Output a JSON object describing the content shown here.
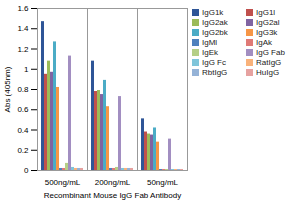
{
  "chart_data": {
    "type": "bar",
    "x_label": "Recombinant Mouse IgG Fab Antibody",
    "y_label": "Abs (405nm)",
    "categories": [
      "500ng/mL",
      "200ng/mL",
      "50ng/mL"
    ],
    "series": [
      {
        "name": "IgG1k",
        "color": "#2E5597",
        "values": [
          1.47,
          1.08,
          0.51
        ]
      },
      {
        "name": "IgG1l",
        "color": "#C0504D",
        "values": [
          0.95,
          0.78,
          0.38
        ]
      },
      {
        "name": "IgG2ak",
        "color": "#9BBB59",
        "values": [
          1.08,
          0.79,
          0.36
        ]
      },
      {
        "name": "IgG2al",
        "color": "#8064A2",
        "values": [
          0.97,
          0.75,
          0.35
        ]
      },
      {
        "name": "IgG2bk",
        "color": "#4BACC6",
        "values": [
          1.27,
          0.89,
          0.42
        ]
      },
      {
        "name": "IgG3k",
        "color": "#F79646",
        "values": [
          0.82,
          0.63,
          0.28
        ]
      },
      {
        "name": "IgMl",
        "color": "#4F81BD",
        "values": [
          0.02,
          0.02,
          0.01
        ]
      },
      {
        "name": "IgAk",
        "color": "#E07A76",
        "values": [
          0.02,
          0.02,
          0.01
        ]
      },
      {
        "name": "IgEk",
        "color": "#B5CF86",
        "values": [
          0.07,
          0.03,
          0.01
        ]
      },
      {
        "name": "IgG Fab",
        "color": "#A28EC1",
        "values": [
          1.13,
          0.73,
          0.31
        ]
      },
      {
        "name": "IgG Fc",
        "color": "#7FC5DA",
        "values": [
          0.03,
          0.02,
          0.01
        ]
      },
      {
        "name": "RatIgG",
        "color": "#F9B27A",
        "values": [
          0.02,
          0.02,
          0.01
        ]
      },
      {
        "name": "RbtIgG",
        "color": "#95B3D7",
        "values": [
          0.02,
          0.02,
          0.01
        ]
      },
      {
        "name": "HuIgG",
        "color": "#E6A2A0",
        "values": [
          0.02,
          0.02,
          0.01
        ]
      }
    ],
    "ylim": [
      0,
      1.6
    ],
    "yticks": [
      0,
      0.2,
      0.4,
      0.6,
      0.8,
      1,
      1.2,
      1.4,
      1.6
    ],
    "grid": false,
    "legend": "top-right"
  }
}
